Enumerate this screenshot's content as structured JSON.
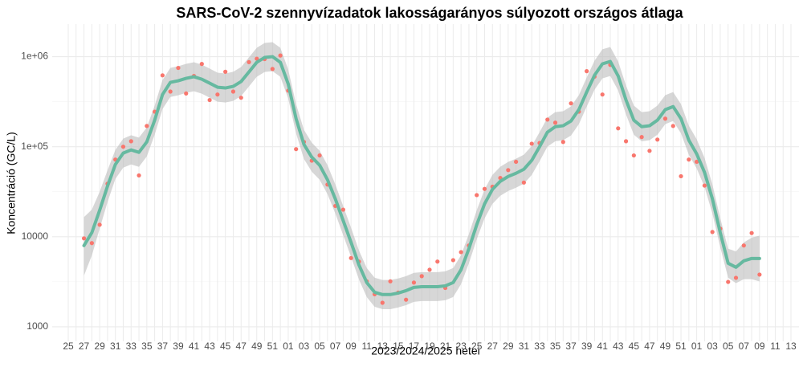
{
  "chart_data": {
    "type": "scatter-smooth",
    "title": "SARS-CoV-2 szennyvízadatok lakosságarányos súlyozott országos átlaga",
    "x_label": "2023/2024/2025 hetei",
    "y_label": "Koncentráció (GC/L)",
    "log_y": true,
    "grid": true,
    "ylim": [
      690,
      2300000
    ],
    "yticks": [
      1000,
      10000,
      {
        "value": 100000,
        "label": "1e+05"
      },
      {
        "value": 1000000,
        "label": "1e+06"
      }
    ],
    "categories": [
      "25",
      null,
      "27",
      null,
      "29",
      null,
      "31",
      null,
      "33",
      null,
      "35",
      null,
      "37",
      null,
      "39",
      null,
      "41",
      null,
      "43",
      null,
      "45",
      null,
      "47",
      null,
      "49",
      null,
      "51",
      null,
      "01",
      null,
      "03",
      null,
      "05",
      null,
      "07",
      null,
      "09",
      null,
      "11",
      null,
      "13",
      null,
      "15",
      null,
      "17",
      null,
      "19",
      null,
      "21",
      null,
      "23",
      null,
      "25",
      null,
      "27",
      null,
      "29",
      null,
      "31",
      null,
      "33",
      null,
      "35",
      null,
      "37",
      null,
      "39",
      null,
      "41",
      null,
      "43",
      null,
      "45",
      null,
      "47",
      null,
      "49",
      null,
      "51",
      null,
      "01",
      null,
      "03",
      null,
      "05",
      null,
      "07",
      null,
      "09",
      null,
      "11",
      null,
      "13"
    ],
    "points": {
      "color": "#f8766d",
      "values": [
        null,
        null,
        9600,
        8500,
        13600,
        38800,
        72000,
        100000,
        115000,
        48000,
        170000,
        245000,
        620000,
        410000,
        750000,
        390000,
        610000,
        830000,
        330000,
        380000,
        680000,
        410000,
        350000,
        870000,
        950000,
        940000,
        730000,
        1030000,
        420000,
        94000,
        113000,
        70000,
        80000,
        38000,
        22000,
        20000,
        5800,
        5300,
        3200,
        2300,
        1850,
        3200,
        2400,
        2000,
        3100,
        3650,
        4300,
        5300,
        2700,
        5500,
        6750,
        8000,
        29000,
        34000,
        36000,
        45000,
        55000,
        68000,
        40000,
        108000,
        110000,
        200000,
        185000,
        113000,
        303000,
        245000,
        690000,
        600000,
        380000,
        810000,
        160000,
        115000,
        80000,
        128000,
        90000,
        120000,
        205000,
        170000,
        47000,
        72000,
        68000,
        37000,
        11300,
        12300,
        3150,
        3500,
        8000,
        11000,
        3800,
        null,
        null,
        null,
        null
      ]
    },
    "smooth": {
      "color": "#66b9a0",
      "band_color": "#bdbdbd",
      "values": [
        null,
        null,
        7980,
        11090,
        19720,
        36500,
        63600,
        84900,
        92100,
        86600,
        113000,
        197000,
        380000,
        518000,
        540000,
        574000,
        598000,
        562000,
        508000,
        458000,
        449000,
        468000,
        529000,
        676000,
        866000,
        980000,
        1000000,
        866000,
        497000,
        205000,
        106000,
        76600,
        62300,
        43000,
        26300,
        15100,
        8660,
        4870,
        3100,
        2420,
        2280,
        2280,
        2370,
        2520,
        2740,
        2790,
        2790,
        2790,
        2850,
        3100,
        4300,
        7350,
        13600,
        23200,
        33600,
        41300,
        46700,
        50700,
        56200,
        70500,
        100000,
        145000,
        167000,
        171000,
        193000,
        258000,
        405000,
        623000,
        832000,
        884000,
        611000,
        330000,
        197000,
        167000,
        171000,
        197000,
        258000,
        279000,
        205000,
        118000,
        83200,
        51800,
        26300,
        11100,
        5080,
        4580,
        5400,
        5740,
        5740,
        null,
        null,
        null,
        null
      ],
      "upper": [
        null,
        null,
        16500,
        20000,
        31600,
        54800,
        92200,
        123000,
        134000,
        126000,
        164000,
        286000,
        551000,
        751000,
        783000,
        832000,
        867000,
        815000,
        737000,
        664000,
        651000,
        679000,
        767000,
        980000,
        1256000,
        1421000,
        1450000,
        1256000,
        721000,
        297000,
        154000,
        111000,
        90300,
        62400,
        38100,
        21900,
        12600,
        7060,
        4500,
        3510,
        3310,
        3310,
        3440,
        3650,
        3970,
        4050,
        4050,
        4050,
        4130,
        4500,
        6240,
        10700,
        19700,
        33600,
        48700,
        59900,
        67700,
        73500,
        81500,
        102000,
        145000,
        210000,
        242000,
        248000,
        280000,
        374000,
        587000,
        903000,
        1206000,
        1282000,
        886000,
        479000,
        286000,
        242000,
        248000,
        286000,
        374000,
        405000,
        297000,
        171000,
        121000,
        75100,
        38100,
        16100,
        7370,
        6870,
        8640,
        9760,
        10300,
        null,
        null,
        null,
        null
      ],
      "lower": [
        null,
        null,
        3700,
        6200,
        12300,
        24300,
        43900,
        58600,
        63500,
        59700,
        78000,
        136000,
        262000,
        357000,
        373000,
        396000,
        413000,
        388000,
        350000,
        316000,
        310000,
        323000,
        365000,
        466000,
        598000,
        676000,
        690000,
        598000,
        343000,
        141000,
        73100,
        52900,
        43000,
        29700,
        18100,
        10400,
        5980,
        3360,
        2140,
        1670,
        1570,
        1570,
        1640,
        1740,
        1890,
        1930,
        1930,
        1930,
        1970,
        2140,
        2970,
        5070,
        9380,
        16000,
        23200,
        28500,
        32200,
        35000,
        38800,
        48600,
        69000,
        100000,
        115000,
        118000,
        133000,
        178000,
        279000,
        430000,
        574000,
        610000,
        422000,
        228000,
        136000,
        115000,
        118000,
        136000,
        178000,
        193000,
        141000,
        81400,
        57400,
        35700,
        18100,
        7660,
        3510,
        3050,
        3380,
        3380,
        3190,
        null,
        null,
        null,
        null
      ]
    }
  }
}
